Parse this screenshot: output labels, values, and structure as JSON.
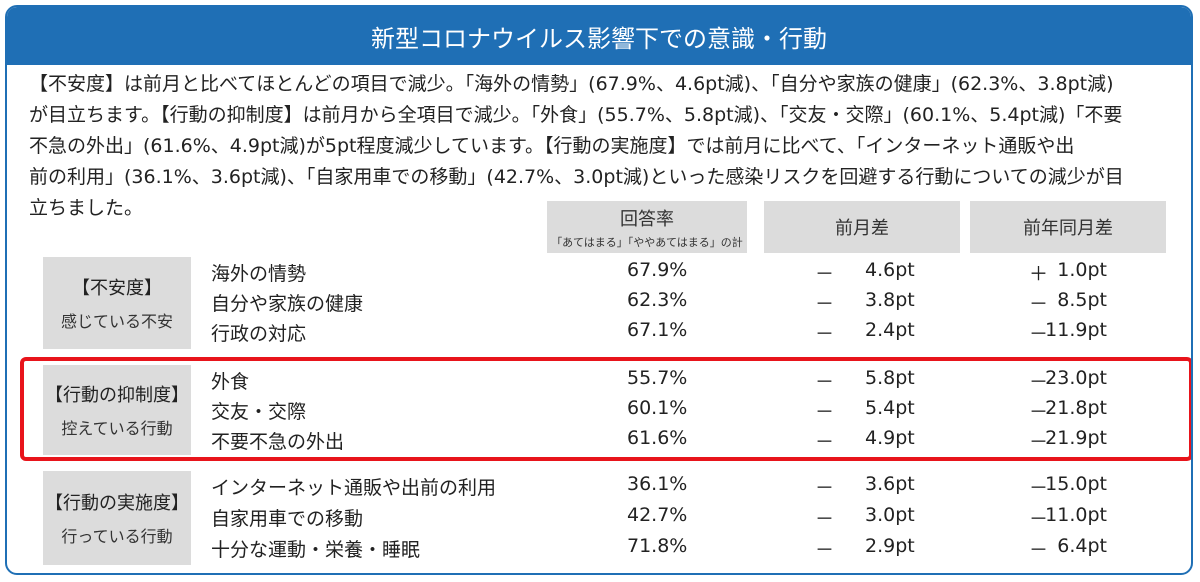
{
  "title": "新型コロナウイルス影響下での意識・行動",
  "summary": [
    "【不安度】は前月と比べてほとんどの項目で減少。「海外の情勢」(67.9%、4.6pt減)、「自分や家族の健康」(62.3%、3.8pt減)",
    "が目立ちます。【行動の抑制度】は前月から全項目で減少。「外食」(55.7%、5.8pt減)、「交友・交際」(60.1%、5.4pt減)「不要",
    "不急の外出」(61.6%、4.9pt減)が5pt程度減少しています。【行動の実施度】では前月に比べて、「インターネット通販や出",
    "前の利用」(36.1%、3.6pt減)、「自家用車での移動」(42.7%、3.0pt減)といった感染リスクを回避する行動についての減少が目",
    "立ちました。"
  ],
  "columns": {
    "rate": "回答率",
    "rate_note": "「あてはまる」「ややあてはまる」の計",
    "mom": "前月差",
    "yoy": "前年同月差"
  },
  "groups": [
    {
      "title": "【不安度】",
      "subtitle": "感じている不安",
      "rows": [
        {
          "item": "海外の情勢",
          "rate": "67.9%",
          "mom_sign": "－",
          "mom": "4.6pt",
          "yoy_sign": "＋",
          "yoy": "1.0pt"
        },
        {
          "item": "自分や家族の健康",
          "rate": "62.3%",
          "mom_sign": "－",
          "mom": "3.8pt",
          "yoy_sign": "－",
          "yoy": "8.5pt"
        },
        {
          "item": "行政の対応",
          "rate": "67.1%",
          "mom_sign": "－",
          "mom": "2.4pt",
          "yoy_sign": "－",
          "yoy": "11.9pt"
        }
      ]
    },
    {
      "title": "【行動の抑制度】",
      "subtitle": "控えている行動",
      "rows": [
        {
          "item": "外食",
          "rate": "55.7%",
          "mom_sign": "－",
          "mom": "5.8pt",
          "yoy_sign": "－",
          "yoy": "23.0pt"
        },
        {
          "item": "交友・交際",
          "rate": "60.1%",
          "mom_sign": "－",
          "mom": "5.4pt",
          "yoy_sign": "－",
          "yoy": "21.8pt"
        },
        {
          "item": "不要不急の外出",
          "rate": "61.6%",
          "mom_sign": "－",
          "mom": "4.9pt",
          "yoy_sign": "－",
          "yoy": "21.9pt"
        }
      ]
    },
    {
      "title": "【行動の実施度】",
      "subtitle": "行っている行動",
      "rows": [
        {
          "item": "インターネット通販や出前の利用",
          "rate": "36.1%",
          "mom_sign": "－",
          "mom": "3.6pt",
          "yoy_sign": "－",
          "yoy": "15.0pt"
        },
        {
          "item": "自家用車での移動",
          "rate": "42.7%",
          "mom_sign": "－",
          "mom": "3.0pt",
          "yoy_sign": "－",
          "yoy": "11.0pt"
        },
        {
          "item": "十分な運動・栄養・睡眠",
          "rate": "71.8%",
          "mom_sign": "－",
          "mom": "2.9pt",
          "yoy_sign": "－",
          "yoy": "6.4pt"
        }
      ]
    }
  ],
  "colors": {
    "header_bg": "#1f6fb5",
    "label_bg": "#dcdcdc",
    "highlight": "#e8141b"
  }
}
